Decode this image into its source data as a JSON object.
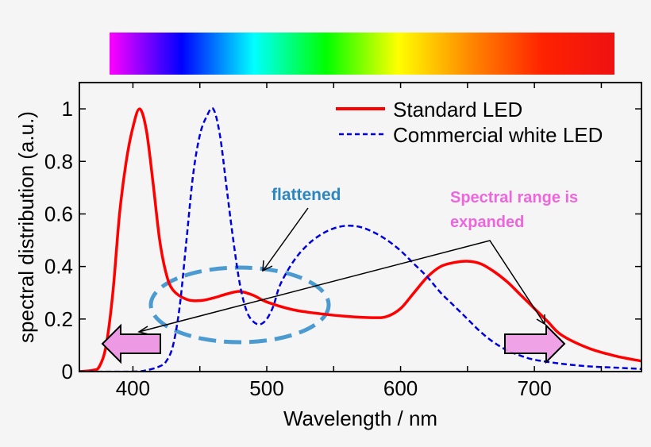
{
  "chart_data": {
    "type": "line",
    "title": "",
    "xlabel": "Wavelength / nm",
    "ylabel": "spectral distribution (a.u.)",
    "xlim": [
      360,
      780
    ],
    "ylim": [
      0,
      1.1
    ],
    "xticks": [
      400,
      500,
      600,
      700
    ],
    "yticks": [
      0,
      0.2,
      0.4,
      0.6,
      0.8,
      1
    ],
    "ytick_labels": [
      "0",
      "0.2",
      "0.4",
      "0.6",
      "0.8",
      "1"
    ],
    "grid": false,
    "legend_position": "top-right",
    "spectrum_bar": [
      "#ff00ff",
      "#0000ff",
      "#00ffff",
      "#00ff00",
      "#ffff00",
      "#ff8800",
      "#ff2200",
      "#ee1111"
    ],
    "series": [
      {
        "name": "Standard LED",
        "color": "#ff0000",
        "style": "solid",
        "x": [
          360,
          370,
          375,
          380,
          385,
          390,
          395,
          400,
          405,
          410,
          415,
          420,
          425,
          430,
          440,
          450,
          460,
          470,
          480,
          490,
          500,
          520,
          540,
          560,
          580,
          590,
          600,
          610,
          620,
          630,
          640,
          650,
          660,
          670,
          680,
          690,
          700,
          710,
          720,
          740,
          760,
          780
        ],
        "y": [
          0,
          0.005,
          0.02,
          0.1,
          0.3,
          0.6,
          0.8,
          0.93,
          1.0,
          0.92,
          0.72,
          0.5,
          0.37,
          0.31,
          0.275,
          0.27,
          0.28,
          0.295,
          0.305,
          0.29,
          0.265,
          0.235,
          0.22,
          0.21,
          0.205,
          0.21,
          0.24,
          0.3,
          0.36,
          0.4,
          0.415,
          0.42,
          0.41,
          0.38,
          0.34,
          0.29,
          0.24,
          0.19,
          0.14,
          0.09,
          0.06,
          0.04
        ]
      },
      {
        "name": "Commercial white LED",
        "color": "#0000dd",
        "style": "dashed",
        "x": [
          360,
          400,
          410,
          420,
          425,
          430,
          435,
          440,
          445,
          450,
          455,
          460,
          465,
          470,
          475,
          480,
          485,
          490,
          495,
          500,
          505,
          510,
          520,
          530,
          540,
          550,
          560,
          570,
          580,
          590,
          600,
          610,
          620,
          630,
          640,
          650,
          660,
          670,
          680,
          690,
          700,
          720,
          740,
          760,
          780
        ],
        "y": [
          0,
          0,
          0.005,
          0.02,
          0.04,
          0.1,
          0.25,
          0.5,
          0.75,
          0.9,
          0.97,
          1.0,
          0.9,
          0.7,
          0.5,
          0.33,
          0.23,
          0.19,
          0.18,
          0.2,
          0.25,
          0.33,
          0.42,
          0.48,
          0.52,
          0.545,
          0.555,
          0.55,
          0.53,
          0.5,
          0.46,
          0.41,
          0.36,
          0.3,
          0.25,
          0.2,
          0.15,
          0.11,
          0.08,
          0.06,
          0.045,
          0.03,
          0.02,
          0.015,
          0.01
        ]
      }
    ],
    "annotations": {
      "flattened": "flattened",
      "flattened_color": "#2e86c1",
      "expanded_line1": "Spectral range is",
      "expanded_line2": "expanded",
      "expanded_color": "#ee66dd",
      "arrow_fill": "#ee99e4"
    }
  }
}
